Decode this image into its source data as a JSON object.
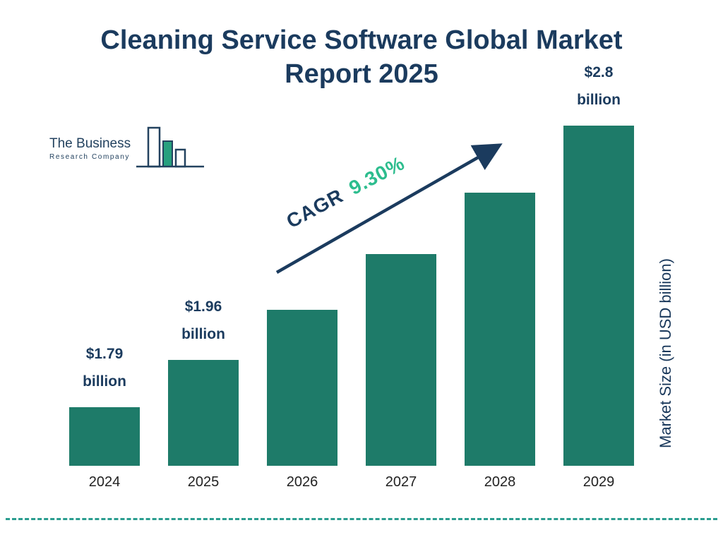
{
  "title": "Cleaning Service Software Global Market Report 2025",
  "logo": {
    "line1": "The Business",
    "line2": "Research Company"
  },
  "cagr": {
    "prefix": "CAGR",
    "value": "9.30%"
  },
  "ylabel": "Market Size (in USD billion)",
  "colors": {
    "navy": "#1b3b5e",
    "bar": "#1e7b69",
    "green": "#2dbd8e",
    "dash": "#2a9d8f"
  },
  "chart_data": {
    "type": "bar",
    "title": "Cleaning Service Software Global Market Report 2025",
    "xlabel": "",
    "ylabel": "Market Size (in USD billion)",
    "cagr_annotation": "CAGR 9.30%",
    "legend": false,
    "grid": false,
    "categories": [
      "2024",
      "2025",
      "2026",
      "2027",
      "2028",
      "2029"
    ],
    "values": [
      1.79,
      1.96,
      2.14,
      2.34,
      2.56,
      2.8
    ],
    "bars": [
      {
        "year": "2024",
        "value": 1.79,
        "label": [
          "$1.79",
          "billion"
        ]
      },
      {
        "year": "2025",
        "value": 1.96,
        "label": [
          "$1.96",
          "billion"
        ]
      },
      {
        "year": "2026",
        "value": 2.14,
        "label": null
      },
      {
        "year": "2027",
        "value": 2.34,
        "label": null
      },
      {
        "year": "2028",
        "value": 2.56,
        "label": null
      },
      {
        "year": "2029",
        "value": 2.8,
        "label": [
          "$2.8",
          "billion"
        ]
      }
    ]
  }
}
